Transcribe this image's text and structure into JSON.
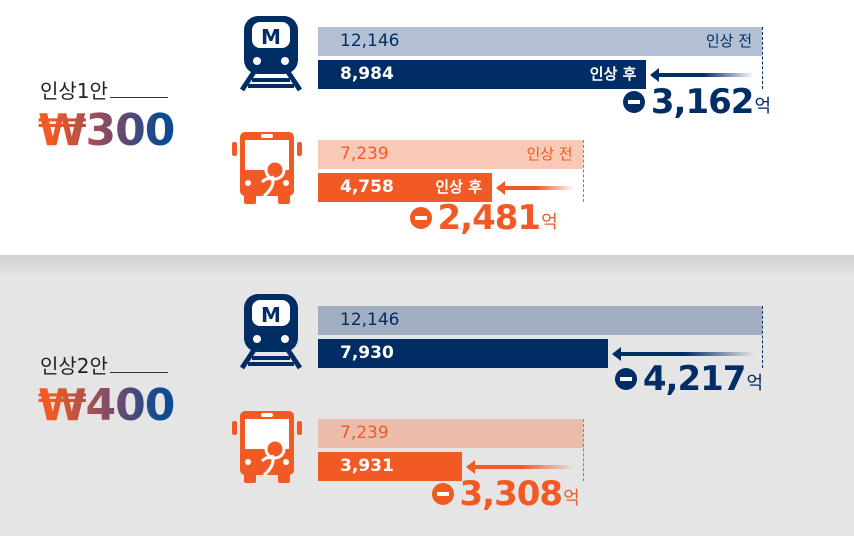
{
  "colors": {
    "metro": "#002d64",
    "metro_before_top": "#b3c0d3",
    "metro_before_bottom": "#a1aec0",
    "bus": "#f15a24",
    "bus_before_top": "#f8c9b6",
    "bus_before_bottom": "#ebbcaa"
  },
  "labels": {
    "before": "인상 전",
    "after": "인상 후",
    "unit": "억"
  },
  "chart_data": {
    "type": "bar",
    "plans": [
      {
        "name": "인상1안",
        "price": "₩300",
        "metro": {
          "icon": "subway-icon",
          "before": 12146,
          "after": 8984,
          "before_label": "12,146",
          "after_label": "8,984",
          "diff": "3,162"
        },
        "bus": {
          "icon": "bus-icon",
          "before": 7239,
          "after": 4758,
          "before_label": "7,239",
          "after_label": "4,758",
          "diff": "2,481"
        }
      },
      {
        "name": "인상2안",
        "price": "₩400",
        "metro": {
          "icon": "subway-icon",
          "before": 12146,
          "after": 7930,
          "before_label": "12,146",
          "after_label": "7,930",
          "diff": "4,217"
        },
        "bus": {
          "icon": "bus-icon",
          "before": 7239,
          "after": 3931,
          "before_label": "7,239",
          "after_label": "3,931",
          "diff": "3,308"
        }
      }
    ]
  }
}
